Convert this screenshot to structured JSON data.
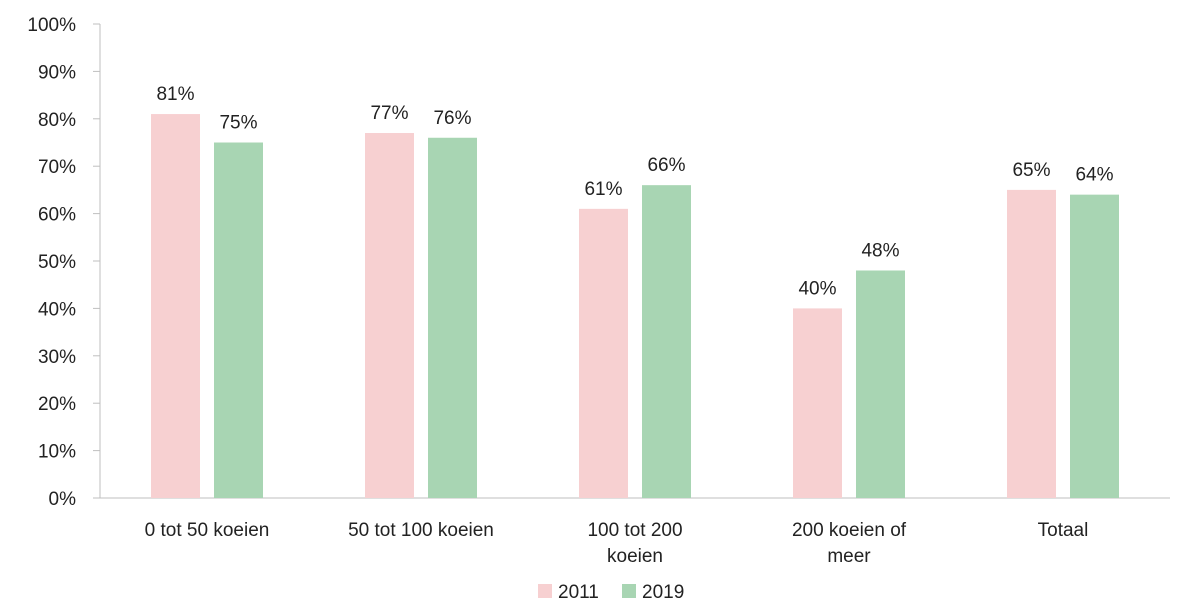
{
  "chart_data": {
    "type": "bar",
    "title": "",
    "xlabel": "",
    "ylabel": "",
    "categories": [
      [
        "0 tot 50 koeien"
      ],
      [
        "50 tot 100 koeien"
      ],
      [
        "100 tot 200",
        "koeien"
      ],
      [
        "200 koeien of",
        "meer"
      ],
      [
        "Totaal"
      ]
    ],
    "series": [
      {
        "name": "2011",
        "color": "#f7d0d1",
        "values": [
          81,
          77,
          61,
          40,
          65
        ],
        "labels": [
          "81%",
          "77%",
          "61%",
          "40%",
          "65%"
        ]
      },
      {
        "name": "2019",
        "color": "#a8d5b3",
        "values": [
          75,
          76,
          66,
          48,
          64
        ],
        "labels": [
          "75%",
          "76%",
          "66%",
          "48%",
          "64%"
        ]
      }
    ],
    "ylim": [
      0,
      100
    ],
    "y_ticks": [
      "0%",
      "10%",
      "20%",
      "30%",
      "40%",
      "50%",
      "60%",
      "70%",
      "80%",
      "90%",
      "100%"
    ],
    "grid": false,
    "legend": "bottom-center",
    "axis_color": "#bfbfbf"
  }
}
